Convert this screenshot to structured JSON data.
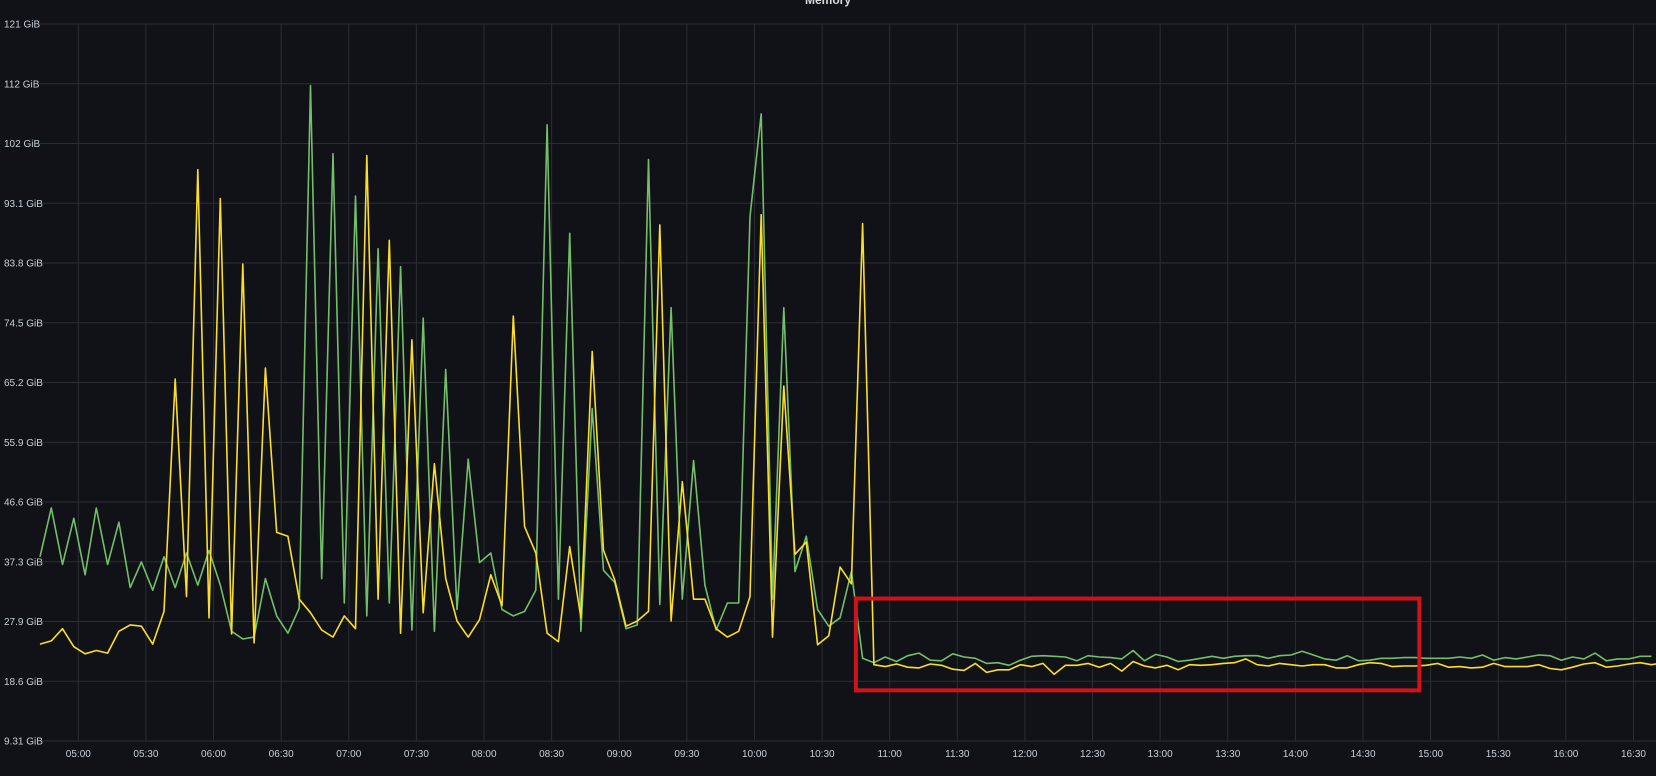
{
  "panel": {
    "title": "Memory"
  },
  "chart_data": {
    "type": "line",
    "title": "Memory",
    "xlabel": "",
    "ylabel": "",
    "x_start": "04:43",
    "x_step_minutes": 5,
    "xlim": [
      "04:43",
      "16:40"
    ],
    "ylim": [
      9.31,
      121
    ],
    "y_unit": "GiB",
    "y_ticks": [
      "9.31 GiB",
      "18.6 GiB",
      "27.9 GiB",
      "37.3 GiB",
      "46.6 GiB",
      "55.9 GiB",
      "65.2 GiB",
      "74.5 GiB",
      "83.8 GiB",
      "93.1 GiB",
      "102 GiB",
      "112 GiB",
      "121 GiB"
    ],
    "x_ticks": [
      "05:00",
      "05:30",
      "06:00",
      "06:30",
      "07:00",
      "07:30",
      "08:00",
      "08:30",
      "09:00",
      "09:30",
      "10:00",
      "10:30",
      "11:00",
      "11:30",
      "12:00",
      "12:30",
      "13:00",
      "13:30",
      "14:00",
      "14:30",
      "15:00",
      "15:30",
      "16:00",
      "16:30"
    ],
    "grid": true,
    "legend": "none",
    "series": [
      {
        "color": "#73bf69",
        "values": [
          38,
          45.6,
          36.8,
          44,
          35.2,
          45.6,
          36.8,
          43.4,
          33.2,
          37.2,
          32.8,
          38,
          33.2,
          38.6,
          33.6,
          39,
          33.6,
          26.4,
          25.2,
          25.5,
          34.6,
          28.8,
          26.1,
          30,
          111.4,
          34.6,
          100.8,
          30.8,
          94.2,
          28.8,
          86,
          30.8,
          83.2,
          26.6,
          75.2,
          26.4,
          67.2,
          29.8,
          53.2,
          37.1,
          38.6,
          29.8,
          28.8,
          29.5,
          32.8,
          105.3,
          31.4,
          88.4,
          26.4,
          61.1,
          35.9,
          34,
          26.8,
          27.4,
          99.9,
          30.6,
          76.8,
          31.4,
          53,
          33.6,
          26.6,
          30.8,
          30.8,
          91,
          107,
          31.4,
          76.8,
          35.7,
          41.2,
          29.8,
          27.2,
          28.5,
          35.7,
          22.2,
          21.5,
          22.4,
          21.7,
          22.6,
          23,
          21.9,
          21.8,
          22.9,
          22.4,
          22.2,
          21.4,
          21.5,
          21.1,
          21.9,
          22.5,
          22.6,
          22.5,
          22.4,
          21.8,
          22.6,
          22.4,
          22.3,
          22.1,
          23.4,
          21.8,
          22.8,
          22.4,
          21.7,
          21.9,
          22.2,
          22.5,
          22.2,
          22.5,
          22.6,
          22.6,
          22.2,
          22.6,
          22.7,
          23.3,
          22.7,
          22.1,
          21.9,
          22.6,
          21.8,
          21.9,
          22.2,
          22.2,
          22.3,
          22.3,
          22.2,
          22.2,
          22.2,
          22.4,
          22.2,
          22.7,
          21.9,
          22.3,
          22.1,
          22.4,
          22.7,
          22.6,
          21.9,
          22.4,
          22.1,
          23,
          21.8,
          22.1,
          22.1,
          22.5,
          22.5
        ]
      },
      {
        "color": "#fade2a",
        "values": [
          24.4,
          24.9,
          26.8,
          24,
          22.9,
          23.4,
          23,
          26.4,
          27.4,
          27.2,
          24.4,
          29.5,
          65.7,
          31.8,
          98.3,
          28.5,
          93.8,
          26,
          83.6,
          24.6,
          67.4,
          41.8,
          41.2,
          31.4,
          29.3,
          26.6,
          25.5,
          28.8,
          26.8,
          100.5,
          31.4,
          87.3,
          26.1,
          71.8,
          29.3,
          52.5,
          34.6,
          28,
          25.5,
          28.2,
          35.2,
          30.4,
          75.5,
          42.7,
          38.6,
          26.1,
          24.8,
          39.6,
          28.5,
          70,
          39,
          34.4,
          27.2,
          28,
          29.5,
          89.7,
          28,
          49.7,
          31.4,
          31.4,
          26.8,
          25.5,
          26.4,
          31.8,
          91.3,
          25.5,
          64.6,
          38.4,
          40.3,
          24.3,
          25.7,
          36.4,
          33.8,
          89.9,
          21.2,
          20.9,
          21.3,
          20.8,
          20.7,
          21.3,
          21.1,
          20.5,
          20.3,
          21.4,
          20,
          20.4,
          20.4,
          21.2,
          20.9,
          21.4,
          19.7,
          21.1,
          21.1,
          21.4,
          20.8,
          21.4,
          20.2,
          21.7,
          21,
          20.7,
          21.1,
          20.4,
          21.2,
          21.1,
          21.2,
          21.4,
          21.5,
          22.1,
          21.2,
          21,
          21.4,
          21.2,
          21,
          21.2,
          21.2,
          20.7,
          20.7,
          21.2,
          21.5,
          21.4,
          20.9,
          21,
          21,
          21.1,
          21.4,
          20.8,
          20.9,
          20.7,
          20.8,
          21.4,
          20.9,
          20.9,
          20.9,
          21.2,
          20.6,
          20.4,
          20.8,
          21.3,
          21.5,
          20.8,
          21,
          21.3,
          21.5,
          21.2,
          21.5,
          21.7
        ]
      }
    ],
    "annotation": {
      "type": "highlight-box",
      "color": "#d0131a",
      "x_from": "10:45",
      "x_to": "14:55",
      "y_from": 17.2,
      "y_to": 31.5
    }
  }
}
